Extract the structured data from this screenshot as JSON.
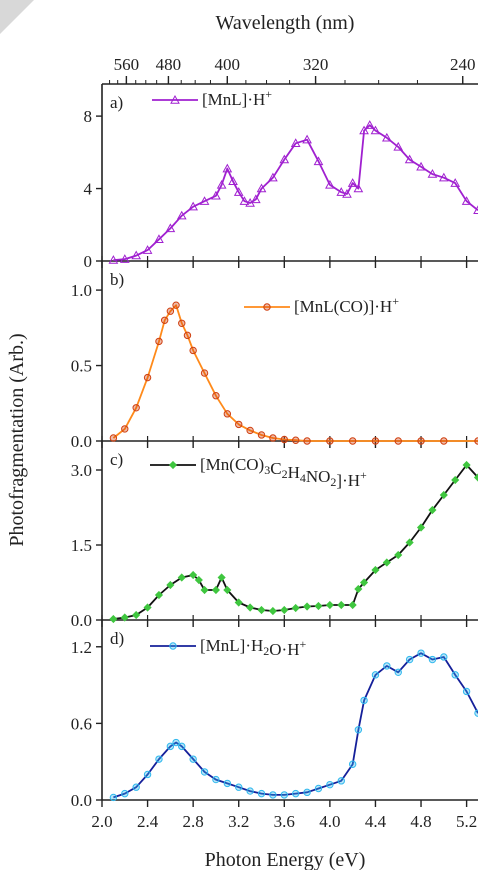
{
  "chart_data": {
    "type": "line",
    "ylabel": "Photofragmentation (Arb.)",
    "xlabel": "Photon Energy (eV)",
    "x_ticks": [
      "2.0",
      "2.4",
      "2.8",
      "3.2",
      "3.6",
      "4.0",
      "4.4",
      "4.8",
      "5.2"
    ],
    "xlim": [
      2.0,
      5.3
    ],
    "top_axis": {
      "label": "Wavelength (nm)",
      "ticks": [
        {
          "label": "560",
          "nm": 560
        },
        {
          "label": "480",
          "nm": 480
        },
        {
          "label": "400",
          "nm": 400
        },
        {
          "label": "320",
          "nm": 320
        },
        {
          "label": "240",
          "nm": 240
        }
      ]
    },
    "panels": [
      {
        "letter": "a)",
        "legend": "[MnL]·H",
        "legend_sup": "+",
        "color": "#a020d0",
        "marker": "triangle",
        "ylim": [
          0,
          9
        ],
        "y_ticks": [
          "0",
          "4",
          "8"
        ],
        "x": [
          2.1,
          2.2,
          2.3,
          2.4,
          2.5,
          2.6,
          2.7,
          2.8,
          2.9,
          3.0,
          3.05,
          3.1,
          3.15,
          3.2,
          3.25,
          3.3,
          3.35,
          3.4,
          3.5,
          3.6,
          3.7,
          3.8,
          3.9,
          4.0,
          4.1,
          4.15,
          4.2,
          4.25,
          4.3,
          4.35,
          4.4,
          4.5,
          4.6,
          4.7,
          4.8,
          4.9,
          5.0,
          5.1,
          5.2,
          5.3
        ],
        "y": [
          0.05,
          0.1,
          0.3,
          0.6,
          1.2,
          1.8,
          2.5,
          3.0,
          3.3,
          3.6,
          4.2,
          5.1,
          4.4,
          3.8,
          3.3,
          3.2,
          3.4,
          4.0,
          4.6,
          5.6,
          6.5,
          6.7,
          5.5,
          4.2,
          3.8,
          3.7,
          4.3,
          4.0,
          7.2,
          7.5,
          7.2,
          6.8,
          6.3,
          5.6,
          5.2,
          4.8,
          4.6,
          4.3,
          3.3,
          2.8
        ]
      },
      {
        "letter": "b)",
        "legend": "[MnL(CO)]·H",
        "legend_sup": "+",
        "color": "#ff8a1a",
        "marker_color": "#d04010",
        "marker": "circle",
        "ylim": [
          0,
          1.1
        ],
        "y_ticks": [
          "0.0",
          "0.5",
          "1.0"
        ],
        "x": [
          2.1,
          2.2,
          2.3,
          2.4,
          2.5,
          2.55,
          2.6,
          2.65,
          2.7,
          2.75,
          2.8,
          2.9,
          3.0,
          3.1,
          3.2,
          3.3,
          3.4,
          3.5,
          3.6,
          3.7,
          3.8,
          4.0,
          4.2,
          4.4,
          4.6,
          4.8,
          5.0,
          5.3
        ],
        "y": [
          0.02,
          0.08,
          0.22,
          0.42,
          0.66,
          0.8,
          0.86,
          0.9,
          0.78,
          0.7,
          0.6,
          0.45,
          0.3,
          0.18,
          0.11,
          0.07,
          0.04,
          0.02,
          0.01,
          0.005,
          0.0,
          0.0,
          0.0,
          0.0,
          0.0,
          0.0,
          0.0,
          0.0
        ]
      },
      {
        "letter": "c)",
        "legend": "[Mn(CO)3C2H4NO2]·H",
        "legend_sup": "+",
        "color": "#111111",
        "marker_color": "#3fc63f",
        "marker": "diamond",
        "ylim": [
          0,
          3.3
        ],
        "y_ticks": [
          "0.0",
          "1.5",
          "3.0"
        ],
        "x": [
          2.1,
          2.2,
          2.3,
          2.4,
          2.5,
          2.6,
          2.7,
          2.8,
          2.85,
          2.9,
          3.0,
          3.05,
          3.1,
          3.2,
          3.3,
          3.4,
          3.5,
          3.6,
          3.7,
          3.8,
          3.9,
          4.0,
          4.1,
          4.2,
          4.25,
          4.3,
          4.4,
          4.5,
          4.6,
          4.7,
          4.8,
          4.9,
          5.0,
          5.1,
          5.2,
          5.3
        ],
        "y": [
          0.02,
          0.05,
          0.1,
          0.25,
          0.5,
          0.7,
          0.85,
          0.9,
          0.8,
          0.6,
          0.6,
          0.85,
          0.6,
          0.35,
          0.25,
          0.2,
          0.18,
          0.2,
          0.24,
          0.27,
          0.28,
          0.3,
          0.3,
          0.3,
          0.62,
          0.75,
          1.0,
          1.15,
          1.3,
          1.55,
          1.85,
          2.2,
          2.5,
          2.8,
          3.1,
          2.85
        ]
      },
      {
        "letter": "d)",
        "legend": "[MnL]·H2O·H",
        "legend_sup": "+",
        "color": "#15209a",
        "marker_color": "#2fb8ee",
        "marker": "circle",
        "ylim": [
          0,
          1.3
        ],
        "y_ticks": [
          "0.0",
          "0.6",
          "1.2"
        ],
        "x": [
          2.1,
          2.2,
          2.3,
          2.4,
          2.5,
          2.6,
          2.65,
          2.7,
          2.8,
          2.9,
          3.0,
          3.1,
          3.2,
          3.3,
          3.4,
          3.5,
          3.6,
          3.7,
          3.8,
          3.9,
          4.0,
          4.1,
          4.2,
          4.25,
          4.3,
          4.4,
          4.5,
          4.6,
          4.7,
          4.8,
          4.9,
          5.0,
          5.1,
          5.2,
          5.3
        ],
        "y": [
          0.02,
          0.05,
          0.1,
          0.2,
          0.32,
          0.42,
          0.45,
          0.42,
          0.32,
          0.22,
          0.16,
          0.13,
          0.1,
          0.07,
          0.05,
          0.04,
          0.04,
          0.05,
          0.06,
          0.09,
          0.12,
          0.15,
          0.28,
          0.55,
          0.78,
          0.98,
          1.05,
          1.0,
          1.1,
          1.15,
          1.1,
          1.12,
          0.98,
          0.85,
          0.68
        ]
      }
    ]
  }
}
